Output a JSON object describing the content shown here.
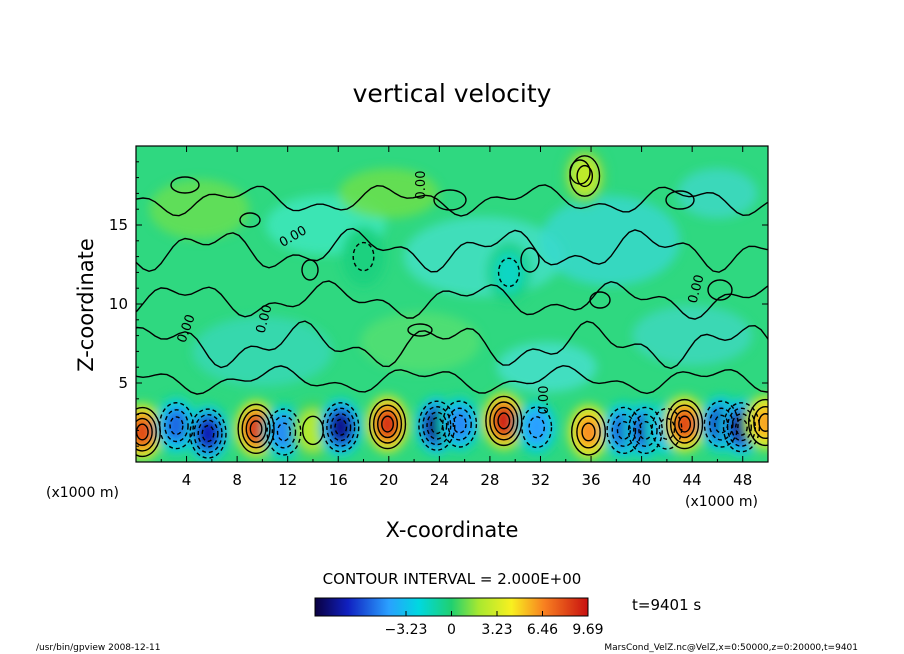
{
  "chart_data": {
    "type": "heatmap",
    "title": "vertical velocity",
    "xlabel": "X-coordinate",
    "ylabel": "Z-coordinate",
    "x_unit_left": "(x1000 m)",
    "x_unit_right": "(x1000 m)",
    "xlim": [
      0,
      50
    ],
    "ylim": [
      0,
      20
    ],
    "x_ticks": [
      4,
      8,
      12,
      16,
      20,
      24,
      28,
      32,
      36,
      40,
      44,
      48
    ],
    "y_ticks": [
      5,
      10,
      15
    ],
    "contour_interval_label": "CONTOUR INTERVAL = 2.000E+00",
    "contour_labels": [
      "0.00",
      "0.00",
      "0.00",
      "0.00",
      "0.00",
      "0.00"
    ],
    "time_label": "t=9401 s",
    "colorbar": {
      "range": [
        -9.69,
        9.69
      ],
      "ticks": [
        -3.23,
        0,
        3.23,
        6.46,
        9.69
      ],
      "tick_labels": [
        "−3.23",
        "0",
        "3.23",
        "6.46",
        "9.69"
      ]
    },
    "cells": [
      {
        "x": 0.5,
        "z": 1.9,
        "value": 8.5
      },
      {
        "x": 3.2,
        "z": 2.3,
        "value": -6.2
      },
      {
        "x": 5.7,
        "z": 1.8,
        "value": -8.0
      },
      {
        "x": 9.5,
        "z": 2.1,
        "value": 9.0
      },
      {
        "x": 11.7,
        "z": 1.9,
        "value": -6.0
      },
      {
        "x": 14.0,
        "z": 2.0,
        "value": 3.5
      },
      {
        "x": 16.2,
        "z": 2.2,
        "value": -8.5
      },
      {
        "x": 19.9,
        "z": 2.4,
        "value": 9.2
      },
      {
        "x": 23.8,
        "z": 2.3,
        "value": -8.8
      },
      {
        "x": 25.6,
        "z": 2.4,
        "value": -6.0
      },
      {
        "x": 29.1,
        "z": 2.6,
        "value": 9.7
      },
      {
        "x": 31.7,
        "z": 2.2,
        "value": -5.5
      },
      {
        "x": 35.8,
        "z": 1.9,
        "value": 7.0
      },
      {
        "x": 38.6,
        "z": 2.0,
        "value": -6.8
      },
      {
        "x": 40.3,
        "z": 2.0,
        "value": -7.2
      },
      {
        "x": 42.0,
        "z": 2.1,
        "value": -5.0
      },
      {
        "x": 43.4,
        "z": 2.4,
        "value": 8.5
      },
      {
        "x": 46.3,
        "z": 2.4,
        "value": -7.8
      },
      {
        "x": 47.9,
        "z": 2.2,
        "value": -8.2
      },
      {
        "x": 49.8,
        "z": 2.5,
        "value": 6.5
      },
      {
        "x": 35.5,
        "z": 18.1,
        "value": 4.0
      },
      {
        "x": 18.0,
        "z": 13.0,
        "value": -2.0
      },
      {
        "x": 29.5,
        "z": 12.0,
        "value": -2.5
      }
    ]
  },
  "footer": {
    "left": "/usr/bin/gpview   2008-12-11",
    "right": "MarsCond_VelZ.nc@VelZ,x=0:50000,z=0:20000,t=9401"
  }
}
